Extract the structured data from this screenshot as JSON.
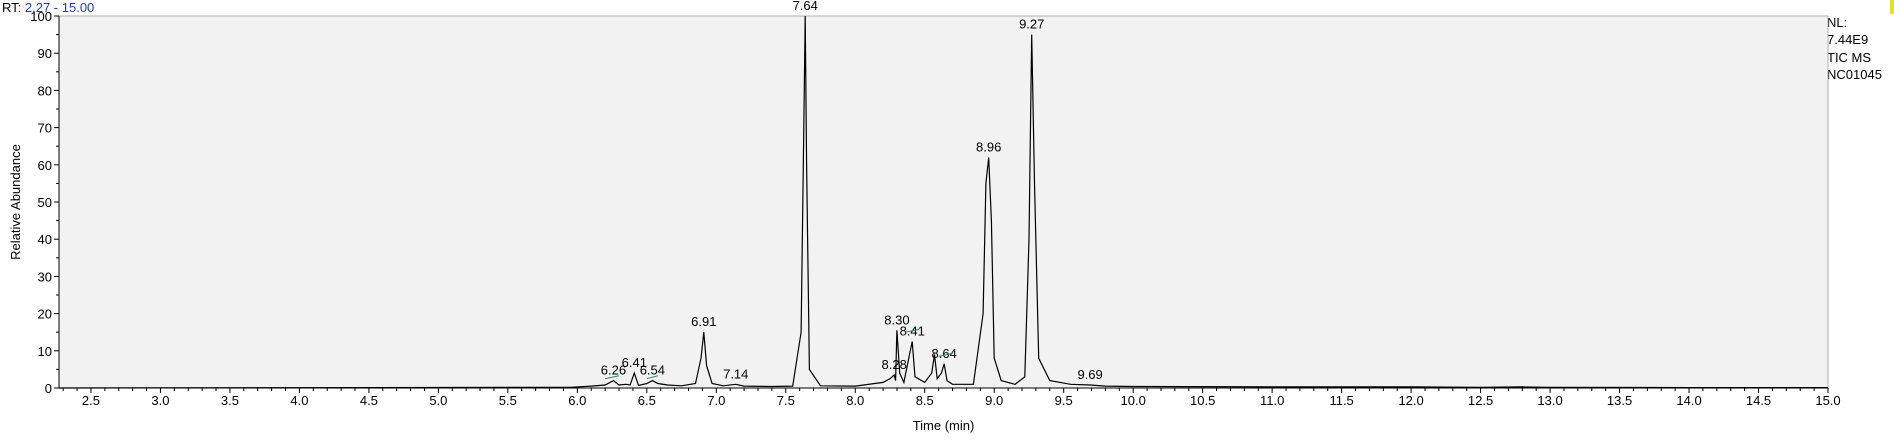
{
  "header": {
    "rt_label": "RT:",
    "rt_range": "2.27 - 15.00"
  },
  "info": {
    "nl_label": "NL:",
    "nl_value": "7.44E9",
    "trace": "TIC  MS",
    "sample": "NC01045"
  },
  "colors": {
    "background": "#ffffff",
    "plot_bg": "#f2f2f2",
    "trace": "#000000",
    "marker": "#2e8b57",
    "rt_value": "#1f3fae"
  },
  "chart_data": {
    "type": "line",
    "title": "",
    "xlabel": "Time (min)",
    "ylabel": "Relative Abundance",
    "xlim": [
      2.27,
      15.0
    ],
    "ylim": [
      0,
      100
    ],
    "x_ticks": [
      "2.5",
      "3.0",
      "3.5",
      "4.0",
      "4.5",
      "5.0",
      "5.5",
      "6.0",
      "6.5",
      "7.0",
      "7.5",
      "8.0",
      "8.5",
      "9.0",
      "9.5",
      "10.0",
      "10.5",
      "11.0",
      "11.5",
      "12.0",
      "12.5",
      "13.0",
      "13.5",
      "14.0",
      "14.5",
      "15.0"
    ],
    "y_ticks": [
      "0",
      "10",
      "20",
      "30",
      "40",
      "50",
      "60",
      "70",
      "80",
      "90",
      "100"
    ],
    "grid": false,
    "series": [
      {
        "x": [
          2.27,
          5.95,
          6.1,
          6.2,
          6.26,
          6.3,
          6.35,
          6.38,
          6.41,
          6.44,
          6.5,
          6.54,
          6.58,
          6.65,
          6.75,
          6.85,
          6.89,
          6.91,
          6.93,
          6.97,
          7.05,
          7.14,
          7.2,
          7.4,
          7.55,
          7.61,
          7.63,
          7.64,
          7.65,
          7.67,
          7.75,
          8.0,
          8.2,
          8.25,
          8.28,
          8.29,
          8.3,
          8.32,
          8.35,
          8.39,
          8.41,
          8.43,
          8.5,
          8.55,
          8.57,
          8.59,
          8.62,
          8.64,
          8.66,
          8.7,
          8.85,
          8.92,
          8.94,
          8.96,
          8.98,
          9.0,
          9.05,
          9.15,
          9.22,
          9.25,
          9.27,
          9.29,
          9.32,
          9.4,
          9.55,
          9.69,
          9.8,
          10.0,
          11.0,
          12.0,
          12.5,
          12.8,
          13.0,
          14.0,
          15.0
        ],
        "y": [
          0,
          0.2,
          0.5,
          0.8,
          2.0,
          0.8,
          1.0,
          0.8,
          4.0,
          0.7,
          1.2,
          2.0,
          1.2,
          0.8,
          0.6,
          1.2,
          8.0,
          15.0,
          6.0,
          1.2,
          0.6,
          1.0,
          0.5,
          0.4,
          0.5,
          15.0,
          70.0,
          100.0,
          60.0,
          5.0,
          0.6,
          0.5,
          1.5,
          2.5,
          3.5,
          2.0,
          15.5,
          4.0,
          1.5,
          9.0,
          12.5,
          3.0,
          1.5,
          4.0,
          9.0,
          2.5,
          4.0,
          6.5,
          2.0,
          1.0,
          1.0,
          20.0,
          55.0,
          62.0,
          45.0,
          8.0,
          2.0,
          1.0,
          3.0,
          40.0,
          95.0,
          55.0,
          8.0,
          2.0,
          1.0,
          0.8,
          0.5,
          0.4,
          0.3,
          0.3,
          0.2,
          0.3,
          0.2,
          0.1,
          0.1
        ]
      }
    ],
    "peaks": [
      {
        "label": "6.26",
        "x": 6.26,
        "y": 2.0
      },
      {
        "label": "6.41",
        "x": 6.41,
        "y": 4.0
      },
      {
        "label": "6.54",
        "x": 6.54,
        "y": 2.0
      },
      {
        "label": "6.91",
        "x": 6.91,
        "y": 15.0
      },
      {
        "label": "7.14",
        "x": 7.14,
        "y": 1.0
      },
      {
        "label": "7.64",
        "x": 7.64,
        "y": 100.0
      },
      {
        "label": "8.28",
        "x": 8.28,
        "y": 3.5
      },
      {
        "label": "8.30",
        "x": 8.3,
        "y": 15.5
      },
      {
        "label": "8.41",
        "x": 8.41,
        "y": 12.5
      },
      {
        "label": "8.64",
        "x": 8.64,
        "y": 6.5
      },
      {
        "label": "8.96",
        "x": 8.96,
        "y": 62.0
      },
      {
        "label": "9.27",
        "x": 9.27,
        "y": 95.0
      },
      {
        "label": "9.69",
        "x": 9.69,
        "y": 0.8
      }
    ]
  }
}
